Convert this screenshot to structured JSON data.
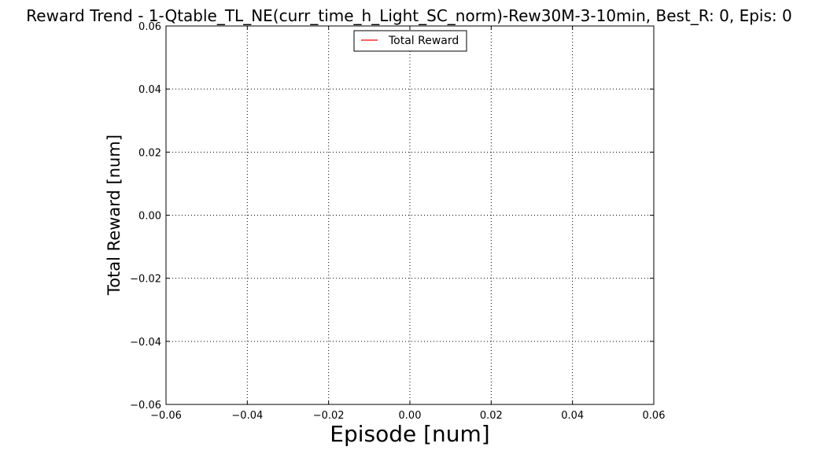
{
  "chart_data": {
    "type": "line",
    "title": "Reward Trend - 1-Qtable_TL_NE(curr_time_h_Light_SC_norm)-Rew30M-3-10min, Best_R: 0, Epis: 0",
    "xlabel": "Episode [num]",
    "ylabel": "Total Reward [num]",
    "xlim": [
      -0.06,
      0.06
    ],
    "ylim": [
      -0.06,
      0.06
    ],
    "xticks": [
      -0.06,
      -0.04,
      -0.02,
      0.0,
      0.02,
      0.04,
      0.06
    ],
    "yticks": [
      -0.06,
      -0.04,
      -0.02,
      0.0,
      0.02,
      0.04,
      0.06
    ],
    "xtick_labels": [
      "−0.06",
      "−0.04",
      "−0.02",
      "0.00",
      "0.02",
      "0.04",
      "0.06"
    ],
    "ytick_labels": [
      "−0.06",
      "−0.04",
      "−0.02",
      "0.00",
      "0.02",
      "0.04",
      "0.06"
    ],
    "grid": true,
    "legend_position": "top-center",
    "series": [
      {
        "name": "Total Reward",
        "color": "#ff0000",
        "x": [],
        "y": []
      }
    ]
  }
}
